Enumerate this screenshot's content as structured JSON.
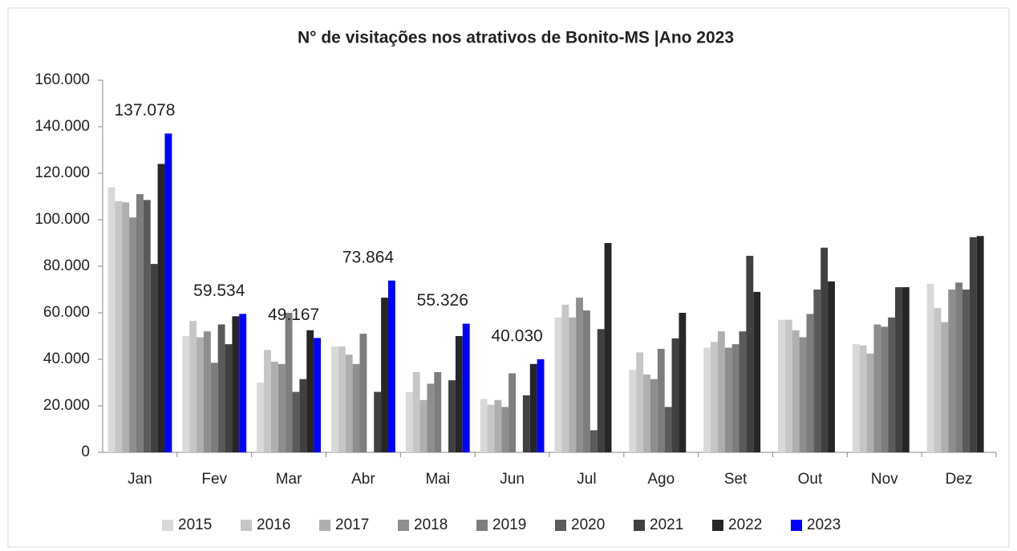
{
  "chart_data": {
    "type": "bar",
    "title": "N° de visitações nos atrativos de Bonito-MS |Ano 2023",
    "categories": [
      "Jan",
      "Fev",
      "Mar",
      "Abr",
      "Mai",
      "Jun",
      "Jul",
      "Ago",
      "Set",
      "Out",
      "Nov",
      "Dez"
    ],
    "ylim": [
      0,
      160000
    ],
    "yticks": [
      0,
      {
        "value": 20000,
        "label": "20.000"
      },
      {
        "value": 40000,
        "label": "40.000"
      },
      {
        "value": 60000,
        "label": "60.000"
      },
      {
        "value": 80000,
        "label": "80.000"
      },
      {
        "value": 100000,
        "label": "100.000"
      },
      {
        "value": 120000,
        "label": "120.000"
      },
      {
        "value": 140000,
        "label": "140.000"
      },
      {
        "value": 160000,
        "label": "160.000"
      }
    ],
    "legend": "bottom",
    "series": [
      {
        "name": "2015",
        "color": "#d9d9d9",
        "values": [
          114000,
          50000,
          30000,
          45500,
          26000,
          23000,
          58000,
          35500,
          45000,
          57000,
          46500,
          72500
        ]
      },
      {
        "name": "2016",
        "color": "#c6c6c6",
        "values": [
          108000,
          56500,
          44000,
          45500,
          34500,
          20500,
          63500,
          43000,
          47500,
          57000,
          46000,
          62000
        ]
      },
      {
        "name": "2017",
        "color": "#afafaf",
        "values": [
          107500,
          49500,
          39000,
          42000,
          22500,
          22500,
          58000,
          33500,
          52000,
          52500,
          42500,
          56000
        ]
      },
      {
        "name": "2018",
        "color": "#8e8e8e",
        "values": [
          101000,
          52000,
          38000,
          38000,
          29500,
          19500,
          66500,
          31500,
          45000,
          49500,
          55000,
          70000
        ]
      },
      {
        "name": "2019",
        "color": "#7d7d7d",
        "values": [
          111000,
          38500,
          60000,
          51000,
          34500,
          34000,
          61000,
          44500,
          46500,
          59500,
          54000,
          73000
        ]
      },
      {
        "name": "2020",
        "color": "#5a5a5a",
        "values": [
          108500,
          55000,
          26000,
          0,
          0,
          0,
          9500,
          19500,
          52000,
          70000,
          58000,
          70000
        ]
      },
      {
        "name": "2021",
        "color": "#404040",
        "values": [
          81000,
          46500,
          31500,
          26000,
          31000,
          24500,
          53000,
          49000,
          84500,
          88000,
          71000,
          92500
        ]
      },
      {
        "name": "2022",
        "color": "#262626",
        "values": [
          124000,
          58500,
          52500,
          66500,
          50000,
          38000,
          90000,
          60000,
          69000,
          73500,
          71000,
          93000
        ]
      },
      {
        "name": "2023",
        "color": "#0000ff",
        "values": [
          137078,
          59534,
          49167,
          73864,
          55326,
          40030,
          null,
          null,
          null,
          null,
          null,
          null
        ],
        "value_labels": [
          "137.078",
          "59.534",
          "49.167",
          "73.864",
          "55.326",
          "40.030",
          null,
          null,
          null,
          null,
          null,
          null
        ]
      }
    ]
  }
}
